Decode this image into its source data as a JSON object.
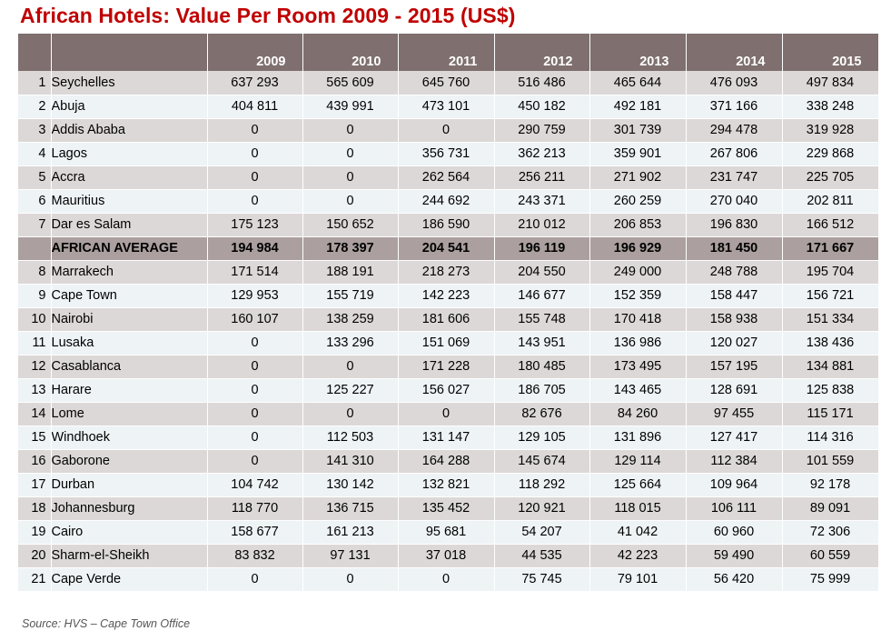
{
  "title": "African Hotels: Value Per Room 2009 - 2015 (US$)",
  "source": "Source: HVS – Cape Town Office",
  "colors": {
    "title": "#c00000",
    "header_bg": "#7f6f6f",
    "row_odd": "#ddd8d8",
    "row_even": "#eef3f6",
    "average_row": "#ab9f9f"
  },
  "table": {
    "columns": [
      "",
      "",
      "2009",
      "2010",
      "2011",
      "2012",
      "2013",
      "2014",
      "2015"
    ],
    "rows": [
      {
        "rank": "1",
        "city": "Seychelles",
        "values": [
          "637 293",
          "565 609",
          "645 760",
          "516 486",
          "465 644",
          "476 093",
          "497 834"
        ]
      },
      {
        "rank": "2",
        "city": "Abuja",
        "values": [
          "404 811",
          "439 991",
          "473 101",
          "450 182",
          "492 181",
          "371 166",
          "338 248"
        ]
      },
      {
        "rank": "3",
        "city": "Addis Ababa",
        "values": [
          "0",
          "0",
          "0",
          "290 759",
          "301 739",
          "294 478",
          "319 928"
        ]
      },
      {
        "rank": "4",
        "city": "Lagos",
        "values": [
          "0",
          "0",
          "356 731",
          "362 213",
          "359 901",
          "267 806",
          "229 868"
        ]
      },
      {
        "rank": "5",
        "city": "Accra",
        "values": [
          "0",
          "0",
          "262 564",
          "256 211",
          "271 902",
          "231 747",
          "225 705"
        ]
      },
      {
        "rank": "6",
        "city": "Mauritius",
        "values": [
          "0",
          "0",
          "244 692",
          "243 371",
          "260 259",
          "270 040",
          "202 811"
        ]
      },
      {
        "rank": "7",
        "city": "Dar es Salam",
        "values": [
          "175 123",
          "150 652",
          "186 590",
          "210 012",
          "206 853",
          "196 830",
          "166 512"
        ]
      },
      {
        "rank": "",
        "city": "AFRICAN AVERAGE",
        "average": true,
        "values": [
          "194 984",
          "178 397",
          "204 541",
          "196 119",
          "196 929",
          "181 450",
          "171 667"
        ]
      },
      {
        "rank": "8",
        "city": "Marrakech",
        "values": [
          "171 514",
          "188 191",
          "218 273",
          "204 550",
          "249 000",
          "248 788",
          "195 704"
        ]
      },
      {
        "rank": "9",
        "city": "Cape Town",
        "values": [
          "129 953",
          "155 719",
          "142 223",
          "146 677",
          "152 359",
          "158 447",
          "156 721"
        ]
      },
      {
        "rank": "10",
        "city": "Nairobi",
        "values": [
          "160 107",
          "138 259",
          "181 606",
          "155 748",
          "170 418",
          "158 938",
          "151 334"
        ]
      },
      {
        "rank": "11",
        "city": "Lusaka",
        "values": [
          "0",
          "133 296",
          "151 069",
          "143 951",
          "136 986",
          "120 027",
          "138 436"
        ]
      },
      {
        "rank": "12",
        "city": "Casablanca",
        "values": [
          "0",
          "0",
          "171 228",
          "180 485",
          "173 495",
          "157 195",
          "134 881"
        ]
      },
      {
        "rank": "13",
        "city": "Harare",
        "values": [
          "0",
          "125 227",
          "156 027",
          "186 705",
          "143 465",
          "128 691",
          "125 838"
        ]
      },
      {
        "rank": "14",
        "city": "Lome",
        "values": [
          "0",
          "0",
          "0",
          "82 676",
          "84 260",
          "97 455",
          "115 171"
        ]
      },
      {
        "rank": "15",
        "city": "Windhoek",
        "values": [
          "0",
          "112 503",
          "131 147",
          "129 105",
          "131 896",
          "127 417",
          "114 316"
        ]
      },
      {
        "rank": "16",
        "city": "Gaborone",
        "values": [
          "0",
          "141 310",
          "164 288",
          "145 674",
          "129 114",
          "112 384",
          "101 559"
        ]
      },
      {
        "rank": "17",
        "city": "Durban",
        "values": [
          "104 742",
          "130 142",
          "132 821",
          "118 292",
          "125 664",
          "109 964",
          "92 178"
        ]
      },
      {
        "rank": "18",
        "city": "Johannesburg",
        "values": [
          "118 770",
          "136 715",
          "135 452",
          "120 921",
          "118 015",
          "106 111",
          "89 091"
        ]
      },
      {
        "rank": "19",
        "city": "Cairo",
        "values": [
          "158 677",
          "161 213",
          "95 681",
          "54 207",
          "41 042",
          "60 960",
          "72 306"
        ]
      },
      {
        "rank": "20",
        "city": "Sharm-el-Sheikh",
        "values": [
          "83 832",
          "97 131",
          "37 018",
          "44 535",
          "42 223",
          "59 490",
          "60 559"
        ]
      },
      {
        "rank": "21",
        "city": "Cape Verde",
        "values": [
          "0",
          "0",
          "0",
          "75 745",
          "79 101",
          "56 420",
          "75 999"
        ]
      }
    ]
  }
}
